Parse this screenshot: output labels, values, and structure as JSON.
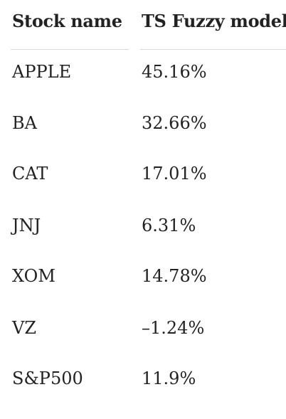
{
  "table": {
    "headers": [
      "Stock name",
      "TS Fuzzy model"
    ],
    "rows": [
      {
        "name": "APPLE",
        "value": "45.16%"
      },
      {
        "name": "BA",
        "value": "32.66%"
      },
      {
        "name": "CAT",
        "value": "17.01%"
      },
      {
        "name": "JNJ",
        "value": "6.31%"
      },
      {
        "name": "XOM",
        "value": "14.78%"
      },
      {
        "name": "VZ",
        "value": "–1.24%"
      },
      {
        "name": "S&P500",
        "value": "11.9%"
      }
    ]
  }
}
